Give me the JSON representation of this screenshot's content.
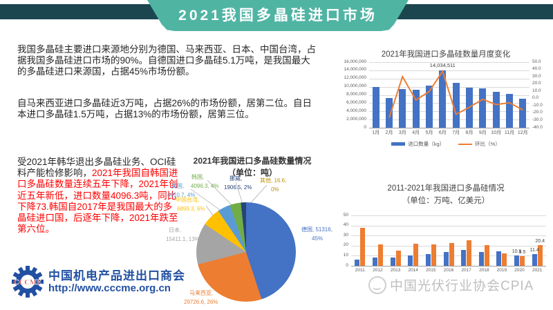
{
  "header": {
    "title": "2021我国多晶硅进口市场"
  },
  "paragraphs": {
    "p1": "我国多晶硅主要进口来源地分别为德国、马来西亚、日本、中国台湾，占据我国多晶硅进口市场的90%。自德国进口多晶硅5.1万吨，是我国最大的多晶硅进口来源国，占据45%市场份额。",
    "p2": "自马来西亚进口多晶硅近3万吨，占据26%的市场份额，居第二位。自日本进口多晶硅1.5万吨，占据13%的市场份额，居第三位。",
    "p3_black": "受2021年韩华退出多晶硅业务、OCI硅料产能检修影响，",
    "p3_red": "2021年我国自韩国进口多晶硅数量连续五年下降，2021年创近五年新低，进口数量4096.3吨，同比下降73.韩国自2017年是我国最大的多晶硅进口国，后逐年下降，2021年跌至第六位。"
  },
  "branding": {
    "cccme_acronym": "CCCME",
    "cccme_name": "中国机电产品进出口商会",
    "cccme_url": "http://www.cccme.org.cn",
    "cpia_watermark": "中国光伏行业协会CPIA"
  },
  "colors": {
    "header_teal": "#50b4a3",
    "header_dark": "#1b4650",
    "bar_blue": "#4472c4",
    "line_orange": "#ed7d31",
    "accent_red": "#fe0000",
    "cccme_blue": "#2150a2",
    "watermark_gray": "#b3b3b3"
  },
  "chart_data": [
    {
      "type": "bar+line",
      "title": "2021年我国进口多晶硅数量月度变化",
      "categories": [
        "1月",
        "2月",
        "3月",
        "4月",
        "5月",
        "6月",
        "7月",
        "8月",
        "9月",
        "10月",
        "11月",
        "12月"
      ],
      "series": [
        {
          "name": "进口数量（kg）",
          "type": "bar",
          "color": "#4472c4",
          "values": [
            9900000,
            7300000,
            9500000,
            9300000,
            10200000,
            14034511,
            11000000,
            9700000,
            9600000,
            8800000,
            8300000,
            7000000
          ]
        },
        {
          "name": "环比（%）",
          "type": "line",
          "color": "#ed7d31",
          "values": [
            null,
            -26.3,
            30.1,
            -2.1,
            9.7,
            37.6,
            -21.6,
            -11.8,
            -1.0,
            -8.3,
            -5.7,
            -15.7
          ]
        }
      ],
      "left_axis": {
        "min": 0,
        "max": 16000000,
        "ticks": [
          "16,000,000",
          "14,000,000",
          "12,000,000",
          "10,000,000",
          "8,000,000",
          "6,000,000",
          "4,000,000",
          "2,000,000",
          "0"
        ]
      },
      "right_axis": {
        "min": -40,
        "max": 50,
        "ticks": [
          "50.0",
          "40.0",
          "30.0",
          "20.0",
          "10.0",
          "0.0",
          "-10.0",
          "-20.0",
          "-30.0",
          "-40.0"
        ]
      },
      "data_label": {
        "category": "6月",
        "text": "14,034,511"
      },
      "legend_position": "bottom",
      "grid": true
    },
    {
      "type": "pie",
      "title": "2021年我国进口多晶硅数量情况",
      "subtitle": "（单位：吨）",
      "slices": [
        {
          "label": "德国",
          "value": 51316,
          "pct": "45%",
          "color": "#4472c4",
          "lines": [
            "德国, 51316,",
            "45%"
          ]
        },
        {
          "label": "马来西亚",
          "value": 29726.6,
          "pct": "26%",
          "color": "#ed7d31",
          "lines": [
            "马来西亚,",
            "29726.6, 26%"
          ]
        },
        {
          "label": "日本",
          "value": 15411.1,
          "pct": "13%",
          "color": "#a5a5a5",
          "lines": [
            "日本,",
            "15411.1, 13%"
          ]
        },
        {
          "label": "中国台湾",
          "value": 6899.3,
          "pct": "6%",
          "color": "#ffc000",
          "lines": [
            "中国台湾,",
            "6899.3, 6%"
          ]
        },
        {
          "label": "美国",
          "value": 4810.7,
          "pct": "4%",
          "color": "#5b9bd5",
          "lines": [
            "美国,",
            "4810.7, 4%"
          ]
        },
        {
          "label": "韩国",
          "value": 4096.3,
          "pct": "4%",
          "color": "#70ad47",
          "lines": [
            "韩国,",
            "4096.3, 4%"
          ]
        },
        {
          "label": "挪威",
          "value": 1906.5,
          "pct": "2%",
          "color": "#264478",
          "lines": [
            "挪威,",
            "1906.5, 2%"
          ]
        },
        {
          "label": "其他",
          "value": 16.6,
          "pct": "0%",
          "color": "#9e480e",
          "label_color": "#bf8f00",
          "lines": [
            "其他, 16.6,",
            "0%"
          ]
        }
      ]
    },
    {
      "type": "bar",
      "title": "2011-2021年我国进口多晶硅情况",
      "subtitle": "（单位：万吨、亿美元）",
      "categories": [
        "2011",
        "2012",
        "2013",
        "2014",
        "2015",
        "2016",
        "2017",
        "2018",
        "2019",
        "2020",
        "2021"
      ],
      "series": [
        {
          "color": "#4472c4",
          "values": [
            6.3,
            8.2,
            8.0,
            10.0,
            11.6,
            14.0,
            15.8,
            14.0,
            14.3,
            10.1,
            11.4
          ]
        },
        {
          "color": "#ed7d31",
          "values": [
            38,
            21,
            15.2,
            22,
            21,
            22.3,
            25.2,
            20.3,
            12.3,
            9.5,
            20.4
          ]
        }
      ],
      "ylim": [
        0,
        50
      ],
      "y_ticks": [
        "50",
        "40",
        "30",
        "20",
        "10",
        "0"
      ],
      "data_labels": [
        {
          "category": "2020",
          "series": 0,
          "text": "10.1"
        },
        {
          "category": "2020",
          "series": 1,
          "text": "9.5"
        },
        {
          "category": "2021",
          "series": 0,
          "text": "11.4"
        },
        {
          "category": "2021",
          "series": 1,
          "text": "20.4"
        }
      ],
      "grid": true
    }
  ]
}
